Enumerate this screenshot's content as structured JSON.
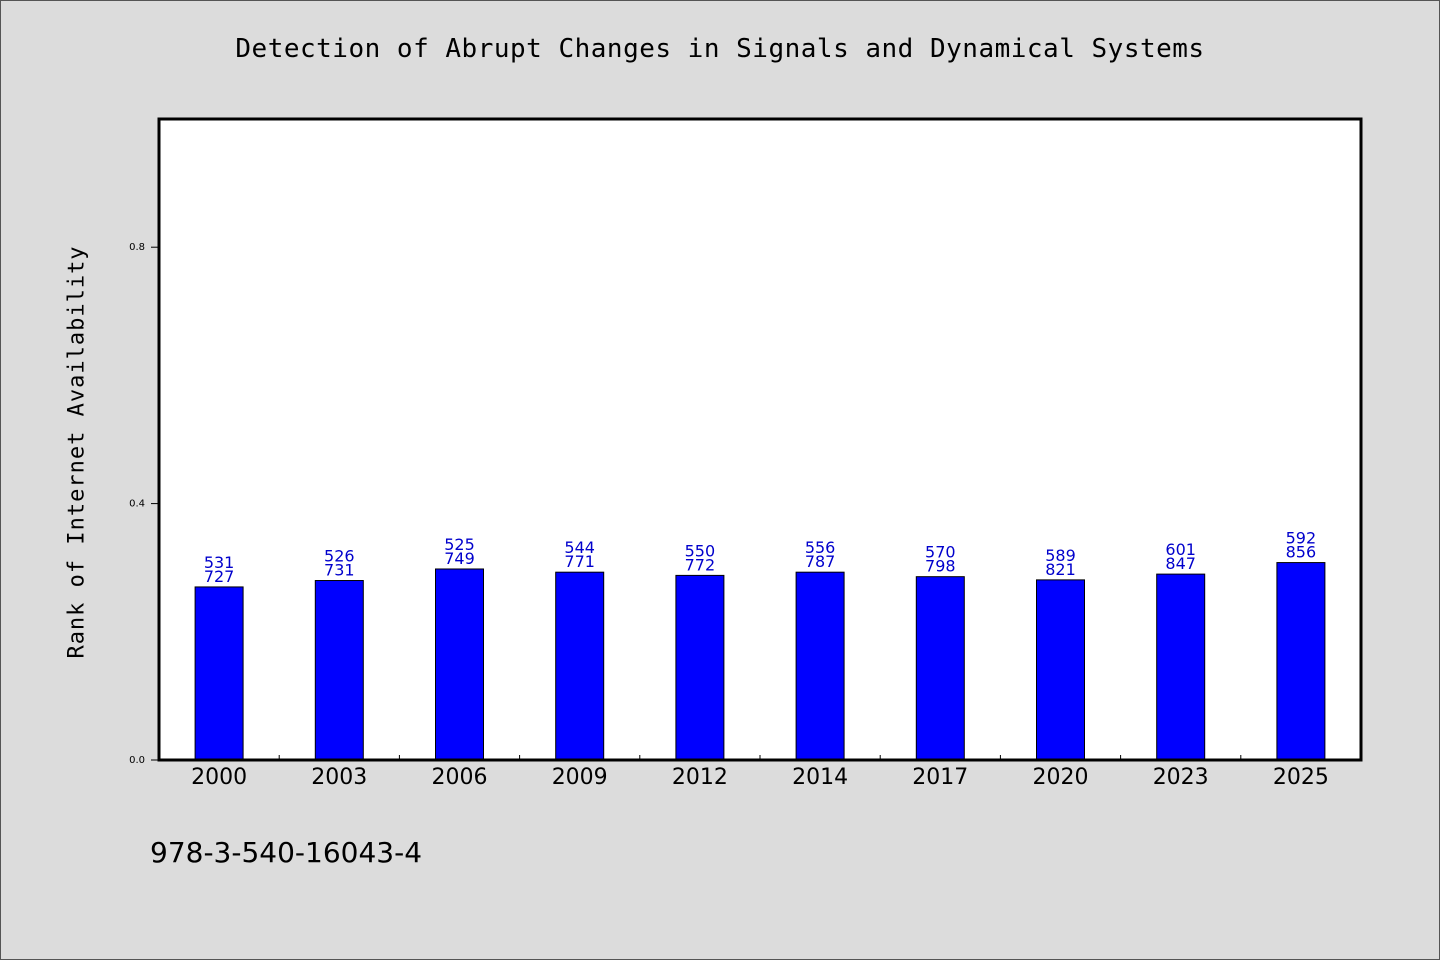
{
  "chart_data": {
    "type": "bar",
    "title": "Detection of Abrupt Changes in Signals and Dynamical Systems",
    "ylabel": "Rank of Internet Availability",
    "xlabel": "",
    "categories": [
      "2000",
      "2003",
      "2006",
      "2009",
      "2012",
      "2014",
      "2017",
      "2020",
      "2023",
      "2025"
    ],
    "values": [
      0.27,
      0.28,
      0.298,
      0.293,
      0.288,
      0.293,
      0.286,
      0.281,
      0.29,
      0.308
    ],
    "label_top": [
      "531",
      "526",
      "525",
      "544",
      "550",
      "556",
      "570",
      "589",
      "601",
      "592"
    ],
    "label_bottom": [
      "727",
      "731",
      "749",
      "771",
      "772",
      "787",
      "798",
      "821",
      "847",
      "856"
    ],
    "ylim": [
      0,
      1.0
    ],
    "yticks": [
      0.0,
      0.4,
      0.8
    ],
    "ytick_labels": [
      "0.0",
      "0.4",
      "0.8"
    ],
    "grid": false,
    "bar_color": "#0000ff",
    "label_color": "#0000cc"
  },
  "footer": {
    "isbn": "978-3-540-16043-4"
  }
}
